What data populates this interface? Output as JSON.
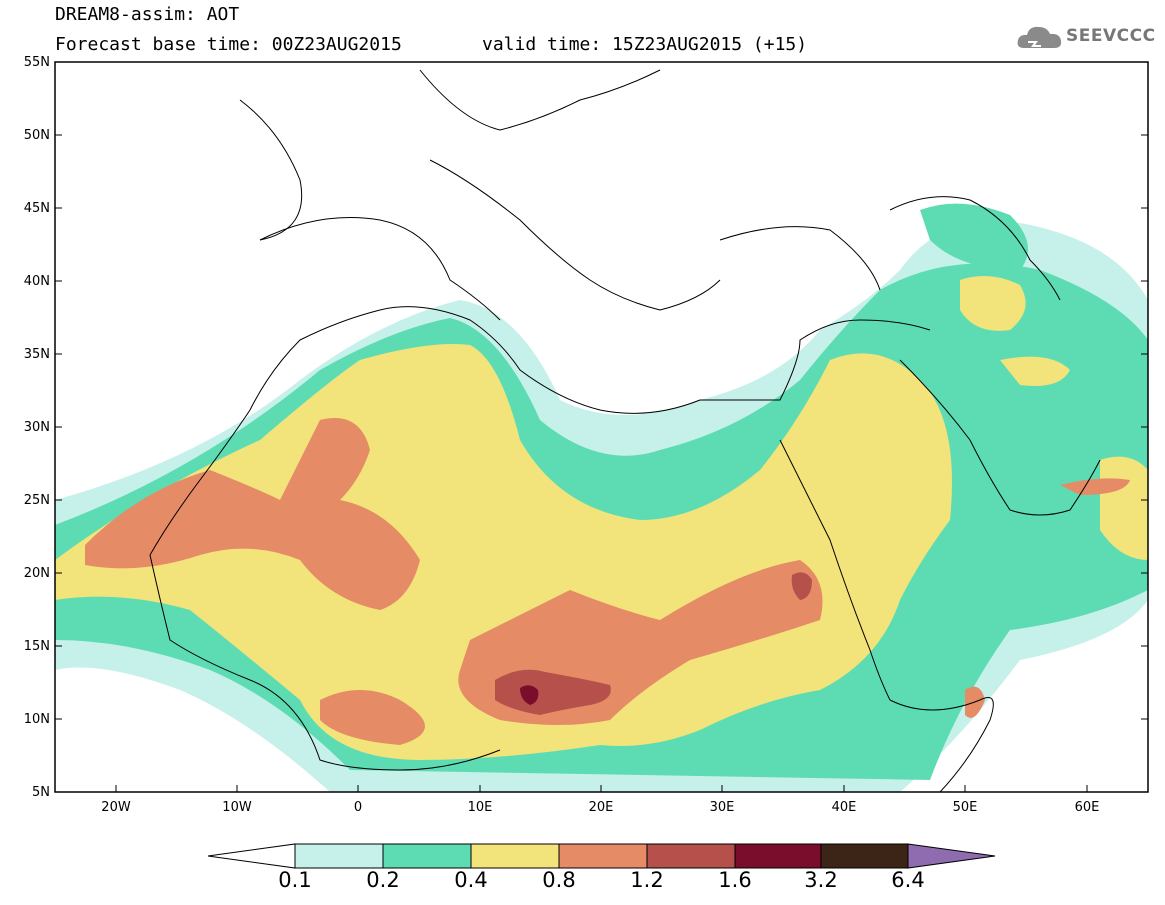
{
  "header": {
    "line1": "DREAM8-assim: AOT",
    "base_time": "Forecast base time: 00Z23AUG2015",
    "valid_time": "valid time: 15Z23AUG2015 (+15)"
  },
  "logo": {
    "text": "SEEVCCC",
    "icon": "cloud-icon"
  },
  "map": {
    "projection": "cylindrical equidistant",
    "lon_range": [
      -25,
      65
    ],
    "lat_range": [
      5,
      55
    ],
    "lat_labels": [
      "55N",
      "50N",
      "45N",
      "40N",
      "35N",
      "30N",
      "25N",
      "20N",
      "15N",
      "10N",
      "5N"
    ],
    "lon_labels": [
      "20W",
      "10W",
      "0",
      "10E",
      "20E",
      "30E",
      "40E",
      "50E",
      "60E"
    ]
  },
  "legend": {
    "levels": [
      "0.1",
      "0.2",
      "0.4",
      "0.8",
      "1.2",
      "1.6",
      "3.2",
      "6.4"
    ],
    "colors": [
      "#c6f0ea",
      "#5ddcb4",
      "#f2e37a",
      "#e58b66",
      "#b5514a",
      "#7a0d2b",
      "#3c2416",
      "#8f6bb0"
    ],
    "under_color": "#ffffff"
  }
}
